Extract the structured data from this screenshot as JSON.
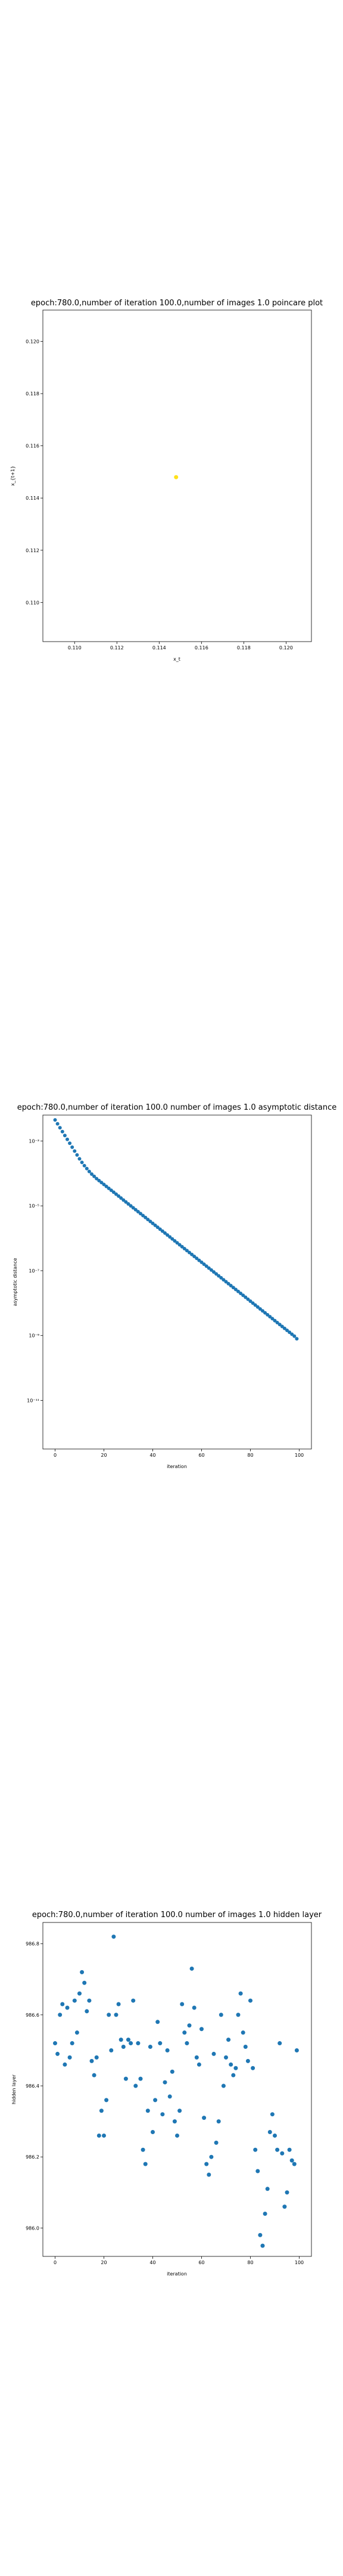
{
  "chart_data": [
    {
      "type": "scatter",
      "title": "epoch:780.0,number of iteration 100.0,number of images 1.0 poincare plot",
      "xlabel": "x_t",
      "ylabel": "x_{t+1}",
      "xlim": [
        0.1085,
        0.1212
      ],
      "ylim": [
        0.1085,
        0.1212
      ],
      "xticks": [
        0.11,
        0.112,
        0.114,
        0.116,
        0.118,
        0.12
      ],
      "xtick_labels": [
        "0.110",
        "0.112",
        "0.114",
        "0.116",
        "0.118",
        "0.120"
      ],
      "yticks": [
        0.11,
        0.112,
        0.114,
        0.116,
        0.118,
        0.12
      ],
      "ytick_labels": [
        "0.110",
        "0.112",
        "0.114",
        "0.116",
        "0.118",
        "0.120"
      ],
      "points": [
        [
          0.1148,
          0.1148
        ]
      ],
      "point_color": "#ffe11a"
    },
    {
      "type": "scatter",
      "yscale": "log",
      "title": "epoch:780.0,number of iteration 100.0  number of images 1.0 asymptotic distance",
      "xlabel": "iteration",
      "ylabel": "asymptotic distance",
      "xlim": [
        -5,
        105
      ],
      "ylim_log10": [
        -12.5,
        -2.2
      ],
      "xticks": [
        0,
        20,
        40,
        60,
        80,
        100
      ],
      "xtick_labels": [
        "0",
        "20",
        "40",
        "60",
        "80",
        "100"
      ],
      "ytick_labels": [
        "10⁻³",
        "10⁻⁵",
        "10⁻⁷",
        "10⁻⁹",
        "10⁻¹¹"
      ],
      "yticks_log10": [
        -3,
        -5,
        -7,
        -9,
        -11
      ],
      "x_range": [
        0,
        99
      ],
      "log10_y_values": [
        -2.35,
        -2.47,
        -2.59,
        -2.71,
        -2.83,
        -2.95,
        -3.07,
        -3.19,
        -3.31,
        -3.43,
        -3.55,
        -3.66,
        -3.76,
        -3.85,
        -3.94,
        -4.02,
        -4.09,
        -4.16,
        -4.22,
        -4.28,
        -4.34,
        -4.4,
        -4.46,
        -4.52,
        -4.58,
        -4.64,
        -4.7,
        -4.76,
        -4.82,
        -4.88,
        -4.94,
        -5.0,
        -5.06,
        -5.12,
        -5.18,
        -5.24,
        -5.3,
        -5.36,
        -5.42,
        -5.48,
        -5.54,
        -5.6,
        -5.66,
        -5.72,
        -5.78,
        -5.84,
        -5.9,
        -5.96,
        -6.02,
        -6.08,
        -6.14,
        -6.2,
        -6.26,
        -6.32,
        -6.38,
        -6.44,
        -6.5,
        -6.56,
        -6.62,
        -6.68,
        -6.74,
        -6.8,
        -6.86,
        -6.92,
        -6.98,
        -7.04,
        -7.1,
        -7.16,
        -7.22,
        -7.28,
        -7.34,
        -7.4,
        -7.46,
        -7.52,
        -7.58,
        -7.64,
        -7.7,
        -7.76,
        -7.82,
        -7.88,
        -7.94,
        -8.0,
        -8.06,
        -8.12,
        -8.18,
        -8.24,
        -8.3,
        -8.36,
        -8.42,
        -8.48,
        -8.54,
        -8.6,
        -8.66,
        -8.72,
        -8.78,
        -8.84,
        -8.9,
        -8.96,
        -9.02,
        -9.1
      ],
      "point_color": "#1f77b4"
    },
    {
      "type": "scatter",
      "title": "epoch:780.0,number of iteration 100.0  number of images 1.0 hidden layer",
      "xlabel": "iteration",
      "ylabel": "hidden layer",
      "xlim": [
        -5,
        105
      ],
      "ylim": [
        985.92,
        986.86
      ],
      "xticks": [
        0,
        20,
        40,
        60,
        80,
        100
      ],
      "xtick_labels": [
        "0",
        "20",
        "40",
        "60",
        "80",
        "100"
      ],
      "yticks": [
        986.0,
        986.2,
        986.4,
        986.6,
        986.8
      ],
      "ytick_labels": [
        "986.0",
        "986.2",
        "986.4",
        "986.6",
        "986.8"
      ],
      "x_range": [
        0,
        99
      ],
      "values": [
        986.52,
        986.49,
        986.6,
        986.63,
        986.46,
        986.62,
        986.48,
        986.52,
        986.64,
        986.55,
        986.66,
        986.72,
        986.69,
        986.61,
        986.64,
        986.47,
        986.43,
        986.48,
        986.26,
        986.33,
        986.26,
        986.36,
        986.6,
        986.5,
        986.82,
        986.6,
        986.63,
        986.53,
        986.51,
        986.42,
        986.53,
        986.52,
        986.64,
        986.4,
        986.52,
        986.42,
        986.22,
        986.18,
        986.33,
        986.51,
        986.27,
        986.36,
        986.58,
        986.52,
        986.32,
        986.41,
        986.5,
        986.37,
        986.44,
        986.3,
        986.26,
        986.33,
        986.63,
        986.55,
        986.52,
        986.57,
        986.73,
        986.62,
        986.48,
        986.46,
        986.56,
        986.31,
        986.18,
        986.15,
        986.2,
        986.49,
        986.24,
        986.3,
        986.6,
        986.4,
        986.48,
        986.53,
        986.46,
        986.43,
        986.45,
        986.6,
        986.66,
        986.55,
        986.51,
        986.47,
        986.64,
        986.45,
        986.22,
        986.16,
        985.98,
        985.95,
        986.04,
        986.11,
        986.27,
        986.32,
        986.26,
        986.22,
        986.52,
        986.21,
        986.06,
        986.1,
        986.22,
        986.19,
        986.18,
        986.5
      ],
      "point_color": "#1f77b4"
    }
  ]
}
